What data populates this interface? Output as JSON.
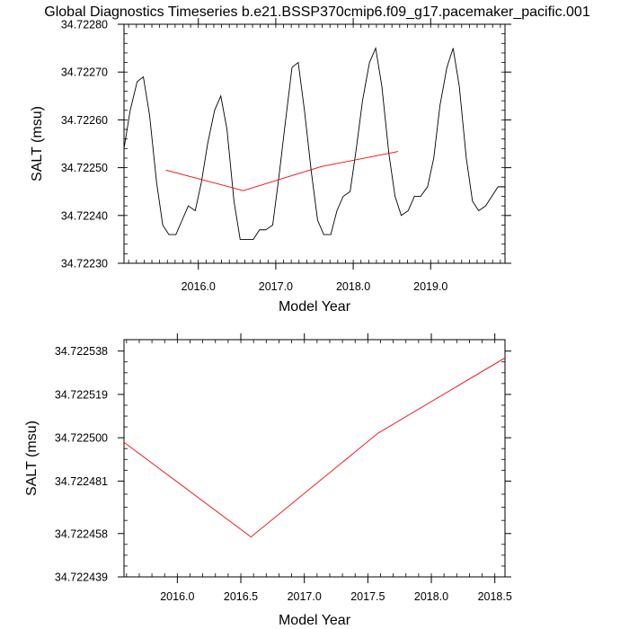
{
  "title": "Global Diagnostics Timeseries b.e21.BSSP370cmip6.f09_g17.pacemaker_pacific.001",
  "chart_data": [
    {
      "type": "line",
      "xlabel": "Model Year",
      "ylabel": "SALT (msu)",
      "xlim": [
        2015.04,
        2019.96
      ],
      "ylim": [
        34.7223,
        34.7228
      ],
      "x_ticks": [
        "2016.0",
        "2017.0",
        "2018.0",
        "2019.0"
      ],
      "x_tick_values": [
        2016.0,
        2017.0,
        2018.0,
        2019.0
      ],
      "y_ticks": [
        "34.72230",
        "34.72240",
        "34.72250",
        "34.72260",
        "34.72270",
        "34.72280"
      ],
      "y_tick_values": [
        34.7223,
        34.7224,
        34.7225,
        34.7226,
        34.7227,
        34.7228
      ],
      "series": [
        {
          "color": "#000000",
          "x": [
            2015.04,
            2015.12,
            2015.21,
            2015.29,
            2015.37,
            2015.46,
            2015.54,
            2015.62,
            2015.71,
            2015.79,
            2015.87,
            2015.96,
            2016.04,
            2016.12,
            2016.21,
            2016.29,
            2016.37,
            2016.46,
            2016.54,
            2016.62,
            2016.71,
            2016.79,
            2016.87,
            2016.96,
            2017.04,
            2017.12,
            2017.21,
            2017.29,
            2017.37,
            2017.46,
            2017.54,
            2017.62,
            2017.71,
            2017.79,
            2017.87,
            2017.96,
            2018.04,
            2018.12,
            2018.21,
            2018.29,
            2018.37,
            2018.46,
            2018.54,
            2018.62,
            2018.71,
            2018.79,
            2018.87,
            2018.96,
            2019.04,
            2019.12,
            2019.21,
            2019.29,
            2019.37,
            2019.46,
            2019.54,
            2019.62,
            2019.71,
            2019.79,
            2019.87,
            2019.96
          ],
          "y": [
            34.72254,
            34.72262,
            34.72268,
            34.72269,
            34.72261,
            34.72247,
            34.72238,
            34.72236,
            34.72236,
            34.72239,
            34.72242,
            34.72241,
            34.72247,
            34.72255,
            34.72262,
            34.72265,
            34.72258,
            34.72243,
            34.72235,
            34.72235,
            34.72235,
            34.72237,
            34.72237,
            34.72238,
            34.72248,
            34.72259,
            34.72271,
            34.72272,
            34.72262,
            34.72249,
            34.72239,
            34.72236,
            34.72236,
            34.72241,
            34.72244,
            34.72245,
            34.72254,
            34.72264,
            34.72272,
            34.72275,
            34.72267,
            34.72253,
            34.72244,
            34.7224,
            34.72241,
            34.72244,
            34.72244,
            34.72246,
            34.72252,
            34.72263,
            34.72271,
            34.72275,
            34.72267,
            34.72252,
            34.72243,
            34.72241,
            34.72242,
            34.72244,
            34.72246,
            34.72246
          ]
        },
        {
          "color": "#ff0000",
          "x": [
            2015.58,
            2016.58,
            2017.58,
            2018.58
          ],
          "y": [
            34.722495,
            34.722452,
            34.722502,
            34.722534
          ]
        }
      ]
    },
    {
      "type": "line",
      "xlabel": "Model Year",
      "ylabel": "SALT (msu)",
      "xlim": [
        2015.58,
        2018.58
      ],
      "ylim": [
        34.722439,
        34.722543
      ],
      "x_ticks": [
        "2016.0",
        "2016.5",
        "2017.0",
        "2017.5",
        "2018.0",
        "2018.5"
      ],
      "x_tick_values": [
        2016.0,
        2016.5,
        2017.0,
        2017.5,
        2018.0,
        2018.5
      ],
      "y_ticks": [
        "34.722439",
        "34.722458",
        "34.722481",
        "34.722500",
        "34.722519",
        "34.722538"
      ],
      "y_tick_values": [
        34.722439,
        34.722458,
        34.722481,
        34.7225,
        34.722519,
        34.722538
      ],
      "series": [
        {
          "color": "#ff0000",
          "x": [
            2015.58,
            2016.58,
            2017.58,
            2018.58
          ],
          "y": [
            34.722498,
            34.7224565,
            34.722502,
            34.722535
          ]
        }
      ]
    }
  ]
}
